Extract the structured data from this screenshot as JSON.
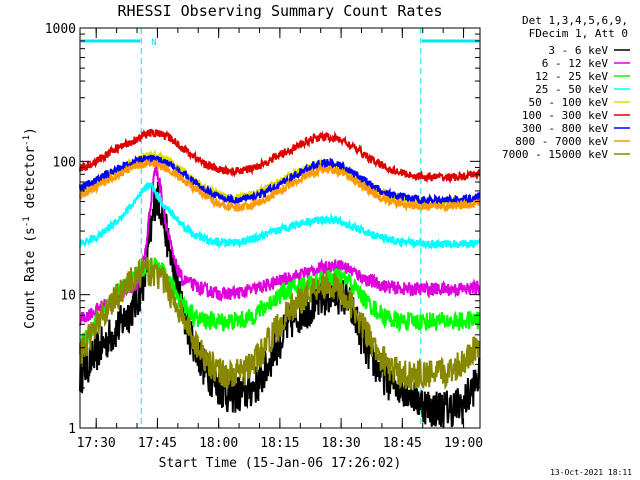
{
  "chart_data": {
    "type": "line",
    "title": "RHESSI Observing Summary Count Rates",
    "xlabel": "Start Time (15-Jan-06 17:26:02)",
    "ylabel": "Count Rate (s",
    "ylabel_sup1": "-1",
    "ylabel_mid": " detector",
    "ylabel_sup2": "-1",
    "ylabel_end": ")",
    "yscale": "log",
    "ylim": [
      1,
      1000
    ],
    "xlim_minutes": [
      0,
      98
    ],
    "yticks": [
      {
        "value": 1,
        "label": "1"
      },
      {
        "value": 10,
        "label": "10"
      },
      {
        "value": 100,
        "label": "100"
      },
      {
        "value": 1000,
        "label": "1000"
      }
    ],
    "xticks": [
      {
        "min": 3.97,
        "label": "17:30"
      },
      {
        "min": 18.97,
        "label": "17:45"
      },
      {
        "min": 33.97,
        "label": "18:00"
      },
      {
        "min": 48.97,
        "label": "18:15"
      },
      {
        "min": 63.97,
        "label": "18:30"
      },
      {
        "min": 78.97,
        "label": "18:45"
      },
      {
        "min": 93.97,
        "label": "19:00"
      }
    ],
    "legend_header": [
      "Det 1,3,4,5,6,9,",
      "FDecim 1, Att 0"
    ],
    "night_intervals_min": [
      [
        0,
        15
      ],
      [
        83.5,
        98
      ]
    ],
    "flag_label": "N",
    "timestamp": "13-Oct-2021 18:11",
    "series": [
      {
        "name": "3 - 6 keV",
        "color": "#000000",
        "points": [
          [
            0,
            2.5
          ],
          [
            5,
            4
          ],
          [
            10,
            6
          ],
          [
            14,
            9
          ],
          [
            16,
            14
          ],
          [
            17,
            25
          ],
          [
            18,
            40
          ],
          [
            18.5,
            55
          ],
          [
            19.5,
            50
          ],
          [
            21,
            30
          ],
          [
            23,
            15
          ],
          [
            25,
            8
          ],
          [
            27,
            5
          ],
          [
            30,
            3
          ],
          [
            33,
            2.2
          ],
          [
            36,
            1.8
          ],
          [
            40,
            1.8
          ],
          [
            44,
            2.2
          ],
          [
            48,
            4
          ],
          [
            52,
            6.5
          ],
          [
            56,
            8
          ],
          [
            60,
            9.5
          ],
          [
            62,
            10
          ],
          [
            64,
            10
          ],
          [
            66,
            8.5
          ],
          [
            68,
            6
          ],
          [
            70,
            4
          ],
          [
            73,
            2.8
          ],
          [
            76,
            2.2
          ],
          [
            80,
            2
          ],
          [
            83,
            1.6
          ],
          [
            86,
            1.4
          ],
          [
            90,
            1.4
          ],
          [
            94,
            1.5
          ],
          [
            98,
            2.5
          ]
        ]
      },
      {
        "name": "6 - 12 keV",
        "color": "#dd00dd",
        "points": [
          [
            0,
            6.5
          ],
          [
            5,
            8
          ],
          [
            10,
            10
          ],
          [
            14,
            12
          ],
          [
            16,
            20
          ],
          [
            17,
            40
          ],
          [
            18,
            75
          ],
          [
            18.5,
            90
          ],
          [
            19.5,
            70
          ],
          [
            21,
            35
          ],
          [
            23,
            18
          ],
          [
            25,
            13
          ],
          [
            30,
            11
          ],
          [
            35,
            10
          ],
          [
            40,
            10.5
          ],
          [
            45,
            11.5
          ],
          [
            50,
            13
          ],
          [
            55,
            14.5
          ],
          [
            60,
            16
          ],
          [
            62,
            16.5
          ],
          [
            64,
            16.5
          ],
          [
            66,
            15.5
          ],
          [
            70,
            13
          ],
          [
            75,
            11.5
          ],
          [
            80,
            11
          ],
          [
            85,
            11
          ],
          [
            90,
            11
          ],
          [
            95,
            11
          ],
          [
            98,
            11.5
          ]
        ]
      },
      {
        "name": "12 - 25 keV",
        "color": "#00ff00",
        "points": [
          [
            0,
            4
          ],
          [
            5,
            7
          ],
          [
            10,
            11
          ],
          [
            14,
            14
          ],
          [
            16,
            16
          ],
          [
            18,
            16.5
          ],
          [
            20,
            15
          ],
          [
            23,
            11
          ],
          [
            26,
            8
          ],
          [
            29,
            6.5
          ],
          [
            33,
            6.3
          ],
          [
            37,
            6.3
          ],
          [
            41,
            6.5
          ],
          [
            45,
            8
          ],
          [
            50,
            10.5
          ],
          [
            55,
            12
          ],
          [
            60,
            13
          ],
          [
            62,
            13.5
          ],
          [
            64,
            13.5
          ],
          [
            66,
            12.5
          ],
          [
            70,
            9
          ],
          [
            74,
            7
          ],
          [
            78,
            6.3
          ],
          [
            83,
            6.3
          ],
          [
            88,
            6.3
          ],
          [
            93,
            6.3
          ],
          [
            98,
            6.5
          ]
        ]
      },
      {
        "name": "25 - 50 keV",
        "color": "#00ffff",
        "points": [
          [
            0,
            24
          ],
          [
            5,
            28
          ],
          [
            10,
            38
          ],
          [
            14,
            52
          ],
          [
            16,
            62
          ],
          [
            17,
            68
          ],
          [
            18,
            62
          ],
          [
            19,
            55
          ],
          [
            21,
            45
          ],
          [
            24,
            36
          ],
          [
            28,
            28
          ],
          [
            32,
            25
          ],
          [
            36,
            24.5
          ],
          [
            40,
            25
          ],
          [
            44,
            27
          ],
          [
            48,
            30
          ],
          [
            52,
            33
          ],
          [
            56,
            35.5
          ],
          [
            59,
            36.5
          ],
          [
            61,
            36.5
          ],
          [
            64,
            35
          ],
          [
            68,
            31
          ],
          [
            72,
            28
          ],
          [
            76,
            25.5
          ],
          [
            80,
            24.5
          ],
          [
            85,
            24
          ],
          [
            90,
            24
          ],
          [
            95,
            24
          ],
          [
            98,
            24
          ]
        ]
      },
      {
        "name": "50 - 100 keV",
        "color": "#dddd00",
        "points": [
          [
            0,
            60
          ],
          [
            4,
            70
          ],
          [
            8,
            82
          ],
          [
            12,
            95
          ],
          [
            15,
            105
          ],
          [
            17,
            112
          ],
          [
            19,
            110
          ],
          [
            22,
            100
          ],
          [
            26,
            80
          ],
          [
            30,
            65
          ],
          [
            34,
            56
          ],
          [
            38,
            53
          ],
          [
            42,
            56
          ],
          [
            46,
            63
          ],
          [
            50,
            74
          ],
          [
            54,
            85
          ],
          [
            57,
            92
          ],
          [
            59,
            95
          ],
          [
            61,
            95
          ],
          [
            64,
            90
          ],
          [
            68,
            76
          ],
          [
            72,
            62
          ],
          [
            76,
            55
          ],
          [
            80,
            52
          ],
          [
            85,
            50
          ],
          [
            90,
            50
          ],
          [
            95,
            50
          ],
          [
            98,
            55
          ]
        ]
      },
      {
        "name": "100 - 300 keV",
        "color": "#dd0000",
        "points": [
          [
            0,
            88
          ],
          [
            4,
            100
          ],
          [
            8,
            120
          ],
          [
            12,
            138
          ],
          [
            15,
            152
          ],
          [
            17,
            163
          ],
          [
            19,
            163
          ],
          [
            22,
            150
          ],
          [
            26,
            120
          ],
          [
            30,
            98
          ],
          [
            34,
            86
          ],
          [
            38,
            84
          ],
          [
            42,
            88
          ],
          [
            46,
            100
          ],
          [
            50,
            116
          ],
          [
            54,
            133
          ],
          [
            57,
            147
          ],
          [
            59,
            152
          ],
          [
            61,
            152
          ],
          [
            64,
            145
          ],
          [
            68,
            122
          ],
          [
            72,
            100
          ],
          [
            76,
            87
          ],
          [
            80,
            80
          ],
          [
            85,
            76
          ],
          [
            90,
            76
          ],
          [
            95,
            77
          ],
          [
            98,
            82
          ]
        ]
      },
      {
        "name": "300 - 800 keV",
        "color": "#0000ff",
        "points": [
          [
            0,
            63
          ],
          [
            4,
            72
          ],
          [
            8,
            84
          ],
          [
            12,
            96
          ],
          [
            15,
            103
          ],
          [
            17,
            106
          ],
          [
            19,
            103
          ],
          [
            22,
            95
          ],
          [
            26,
            78
          ],
          [
            30,
            62
          ],
          [
            34,
            54
          ],
          [
            38,
            51
          ],
          [
            42,
            53
          ],
          [
            46,
            60
          ],
          [
            50,
            70
          ],
          [
            54,
            82
          ],
          [
            57,
            92
          ],
          [
            59,
            97
          ],
          [
            61,
            97
          ],
          [
            64,
            92
          ],
          [
            68,
            78
          ],
          [
            72,
            64
          ],
          [
            76,
            56
          ],
          [
            80,
            53
          ],
          [
            85,
            51
          ],
          [
            90,
            51
          ],
          [
            95,
            52
          ],
          [
            98,
            55
          ]
        ]
      },
      {
        "name": "800 - 7000 keV",
        "color": "#ff9900",
        "points": [
          [
            0,
            55
          ],
          [
            4,
            64
          ],
          [
            8,
            76
          ],
          [
            12,
            87
          ],
          [
            15,
            94
          ],
          [
            17,
            98
          ],
          [
            19,
            95
          ],
          [
            22,
            86
          ],
          [
            26,
            70
          ],
          [
            30,
            56
          ],
          [
            34,
            48
          ],
          [
            38,
            45
          ],
          [
            42,
            47
          ],
          [
            46,
            53
          ],
          [
            50,
            63
          ],
          [
            54,
            74
          ],
          [
            57,
            82
          ],
          [
            59,
            86
          ],
          [
            61,
            86
          ],
          [
            64,
            82
          ],
          [
            68,
            70
          ],
          [
            72,
            57
          ],
          [
            76,
            50
          ],
          [
            80,
            47
          ],
          [
            85,
            46
          ],
          [
            90,
            46
          ],
          [
            95,
            47
          ],
          [
            98,
            49
          ]
        ]
      },
      {
        "name": "7000 - 15000 keV",
        "color": "#888800",
        "points": [
          [
            0,
            3.5
          ],
          [
            4,
            6
          ],
          [
            8,
            9
          ],
          [
            12,
            12.5
          ],
          [
            15,
            14.5
          ],
          [
            17,
            15
          ],
          [
            19,
            14
          ],
          [
            21,
            12
          ],
          [
            24,
            8
          ],
          [
            28,
            4.5
          ],
          [
            32,
            3
          ],
          [
            36,
            2.5
          ],
          [
            40,
            2.6
          ],
          [
            44,
            3.5
          ],
          [
            48,
            5.5
          ],
          [
            52,
            8
          ],
          [
            56,
            10.5
          ],
          [
            59,
            12
          ],
          [
            61,
            12
          ],
          [
            64,
            10.5
          ],
          [
            68,
            7
          ],
          [
            72,
            4
          ],
          [
            76,
            2.8
          ],
          [
            80,
            2.5
          ],
          [
            85,
            2.5
          ],
          [
            90,
            2.6
          ],
          [
            94,
            3.2
          ],
          [
            98,
            4.5
          ]
        ]
      }
    ]
  }
}
